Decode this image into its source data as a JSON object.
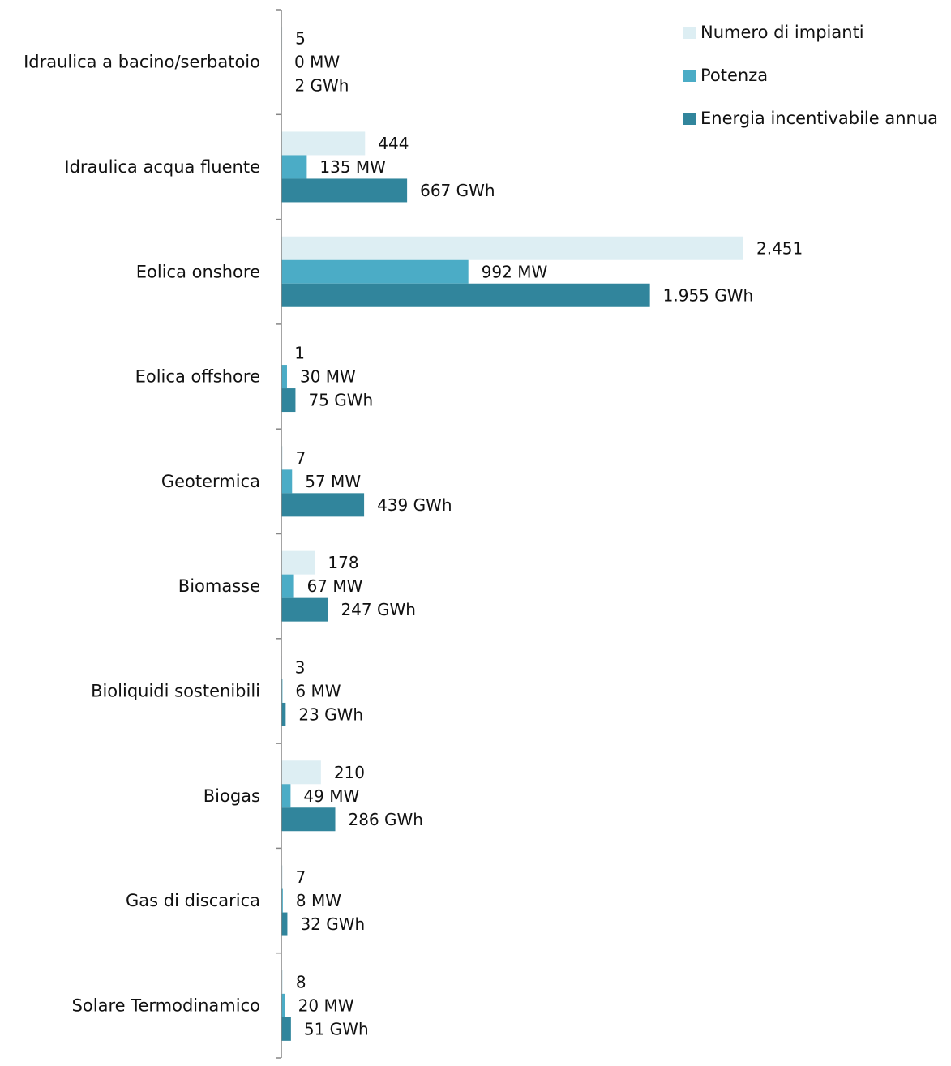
{
  "chart_data": {
    "type": "bar",
    "orientation": "horizontal",
    "title": "",
    "xlabel": "",
    "ylabel": "",
    "legend_position": "top-right",
    "grid": false,
    "categories": [
      "Idraulica a bacino/serbatoio",
      "Idraulica acqua fluente",
      "Eolica onshore",
      "Eolica offshore",
      "Geotermica",
      "Biomasse",
      "Bioliquidi sostenibili",
      "Biogas",
      "Gas di discarica",
      "Solare Termodinamico"
    ],
    "series": [
      {
        "name": "Numero di impianti",
        "color": "#ddeef3",
        "values": [
          5,
          444,
          2451,
          1,
          7,
          178,
          3,
          210,
          7,
          8
        ],
        "labels": [
          "5",
          "444",
          "2.451",
          "1",
          "7",
          "178",
          "3",
          "210",
          "7",
          "8"
        ]
      },
      {
        "name": "Potenza",
        "color": "#4bacc6",
        "values": [
          0,
          135,
          992,
          30,
          57,
          67,
          6,
          49,
          8,
          20
        ],
        "labels": [
          "0 MW",
          "135 MW",
          "992 MW",
          "30 MW",
          "57 MW",
          "67 MW",
          "6 MW",
          "49 MW",
          "8 MW",
          "20 MW"
        ]
      },
      {
        "name": "Energia incentivabile annua",
        "color": "#31859c",
        "values": [
          2,
          667,
          1955,
          75,
          439,
          247,
          23,
          286,
          32,
          51
        ],
        "labels": [
          "2 GWh",
          "667 GWh",
          "1.955 GWh",
          "75 GWh",
          "439 GWh",
          "247 GWh",
          "23 GWh",
          "286 GWh",
          "32 GWh",
          "51 GWh"
        ]
      }
    ],
    "axis_color": "#868686"
  }
}
